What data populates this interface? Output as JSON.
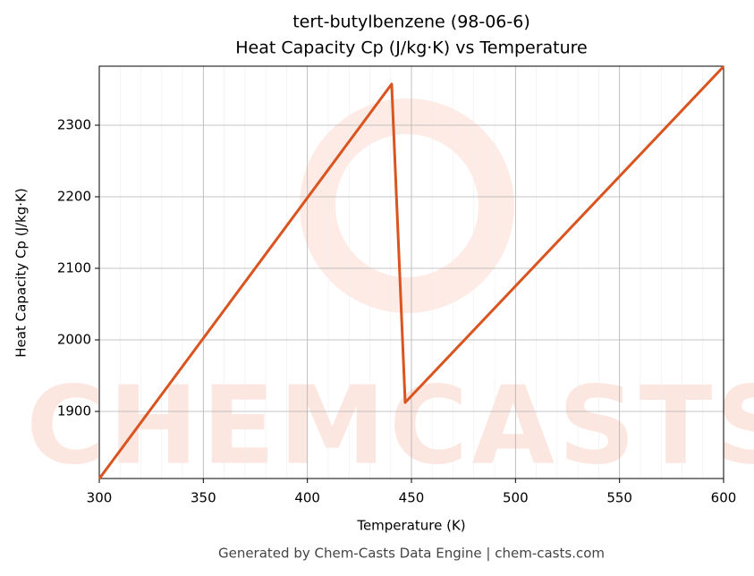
{
  "chart_data": {
    "type": "line",
    "title": "tert-butylbenzene (98-06-6)",
    "subtitle": "Heat Capacity Cp (J/kg·K) vs Temperature",
    "x_label": "Temperature (K)",
    "y_label": "Heat Capacity Cp (J/kg·K)",
    "footer": "Generated by Chem-Casts Data Engine | chem-casts.com",
    "watermark": "CHEMCASTS",
    "x": [
      300,
      440.5,
      447,
      600
    ],
    "series": [
      {
        "name": "Cp",
        "color": "#d9541f",
        "values": [
          1806,
          2357.5,
          1912.5,
          2382
        ]
      }
    ],
    "xlim": [
      300,
      600
    ],
    "xticks": [
      300,
      350,
      400,
      450,
      500,
      550,
      600
    ],
    "ylim": [
      1806.25,
      2382.5
    ],
    "yticks": [
      1900,
      2000,
      2100,
      2200,
      2300
    ],
    "grid": true
  }
}
